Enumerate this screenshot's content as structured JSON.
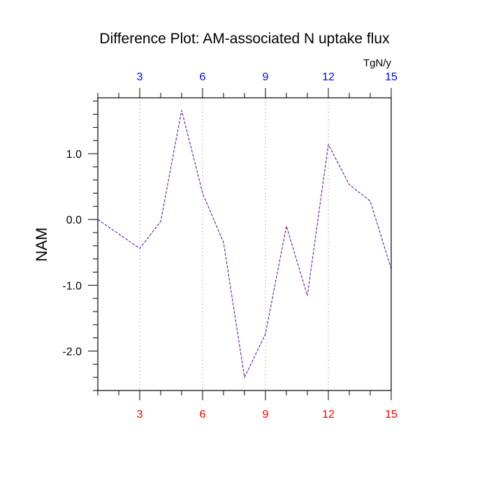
{
  "chart_data": {
    "type": "line",
    "title": "Difference Plot: AM-associated N uptake flux",
    "units": "TgN/y",
    "ylabel": "NAM",
    "xlabel": "",
    "x": [
      1,
      2,
      3,
      4,
      5,
      6,
      7,
      8,
      9,
      10,
      11,
      12,
      13,
      14,
      15
    ],
    "series": [
      {
        "values": [
          0.0,
          -0.22,
          -0.44,
          -0.03,
          1.66,
          0.4,
          -0.35,
          -2.4,
          -1.74,
          -0.1,
          -1.16,
          1.14,
          0.53,
          0.28,
          -0.75
        ],
        "color": "#5500aa",
        "dash": "dashed"
      }
    ],
    "xlim": [
      1,
      15
    ],
    "ylim": [
      -2.6,
      1.85
    ],
    "x_ticks": [
      3,
      6,
      9,
      12,
      15
    ],
    "y_ticks": [
      1.0,
      0.0,
      -1.0,
      -2.0
    ],
    "x_tick_labels_bottom": [
      "3",
      "6",
      "9",
      "12",
      "15"
    ],
    "x_tick_labels_top": [
      "3",
      "6",
      "9",
      "12",
      "15"
    ],
    "y_tick_labels": [
      "1.0",
      "0.0",
      "-1.0",
      "-2.0"
    ],
    "bottom_tick_color": "#ff0000",
    "top_tick_color": "#0000ff",
    "grid": "vertical dotted",
    "grid_color": "#bbbbbb"
  }
}
